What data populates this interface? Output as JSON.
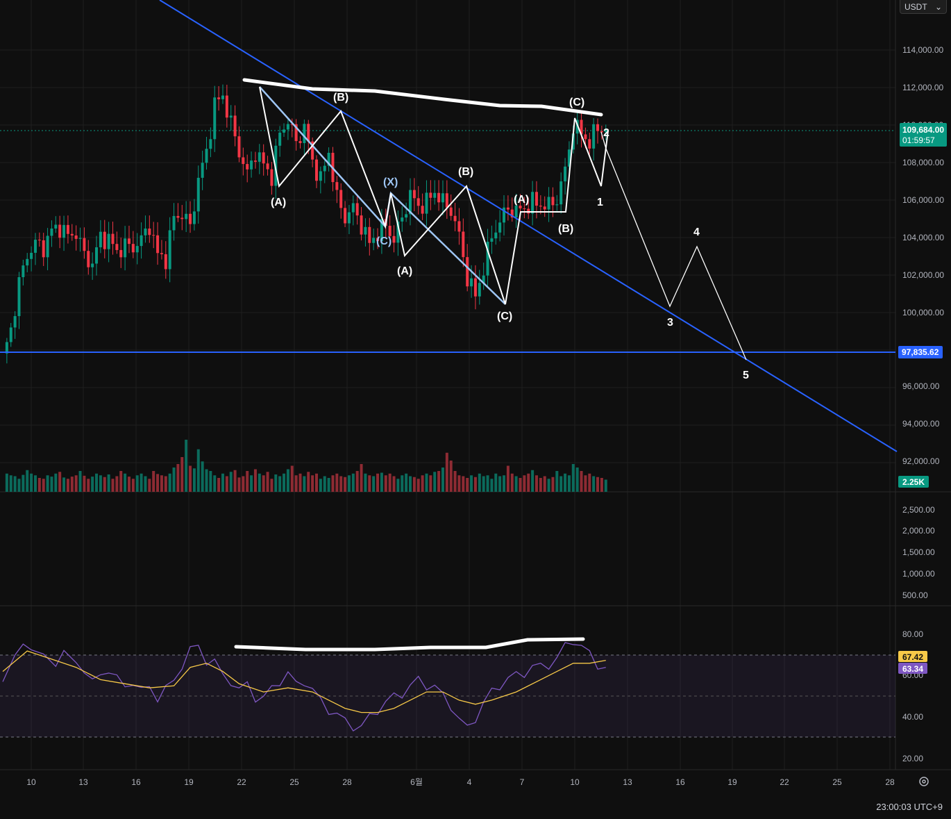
{
  "currency": {
    "label": "USDT",
    "chevron": "chevron-down-icon"
  },
  "clock": "23:00:03 UTC+9",
  "colors": {
    "background": "#0f0f0f",
    "up": "#089981",
    "down": "#f23645",
    "trendline": "#2962ff",
    "rsi": "#7e57c2",
    "rsi_ma": "#f7c948",
    "annotation": "#ffffff",
    "correction": "#9ec6f5"
  },
  "price_axis": {
    "ticks": [
      "114,000.00",
      "112,000.00",
      "110,000.00",
      "108,000.00",
      "106,000.00",
      "104,000.00",
      "102,000.00",
      "100,000.00",
      "96,000.00",
      "94,000.00",
      "92,000.00"
    ],
    "last_price": "109,684.00",
    "countdown": "01:59:57",
    "support_level": "97,835.62",
    "volume_badge": "2.25K"
  },
  "volume_axis": {
    "ticks": [
      "2,500.00",
      "2,000.00",
      "1,500.00",
      "1,000.00",
      "500.00"
    ]
  },
  "rsi_axis": {
    "ticks": [
      "80.00",
      "60.00",
      "40.00",
      "20.00"
    ],
    "ma_badge": "67.42",
    "rsi_badge": "63.34"
  },
  "time_axis": {
    "ticks": [
      "10",
      "13",
      "16",
      "19",
      "22",
      "25",
      "28",
      "6월",
      "4",
      "7",
      "10",
      "13",
      "16",
      "19",
      "22",
      "25",
      "28"
    ]
  },
  "wave_labels": {
    "a1": "(A)",
    "b1": "(B)",
    "x1": "(X)",
    "c1": "(C)",
    "a2": "(A)",
    "b2": "(B)",
    "c2": "(C)",
    "a3": "(A)",
    "b3": "(B)",
    "c3": "(C)",
    "n1": "1",
    "n2": "2",
    "n3": "3",
    "n4": "4",
    "n5": "5"
  },
  "chart_data": {
    "type": "candlestick",
    "symbol_quote": "USDT",
    "price_range": [
      91000,
      115000
    ],
    "last_price": 109684.0,
    "horizontal_support": 97835.62,
    "volume_range": [
      0,
      2700
    ],
    "last_volume": 2250,
    "rsi_range": [
      15,
      85
    ],
    "rsi_bands": [
      70,
      50,
      30
    ],
    "rsi_last": 63.34,
    "rsi_ma_last": 67.42,
    "price_path": [
      [
        0,
        97500
      ],
      [
        2,
        99000
      ],
      [
        4,
        101500
      ],
      [
        6,
        103000
      ],
      [
        8,
        103600
      ],
      [
        10,
        103400
      ],
      [
        12,
        104300
      ],
      [
        14,
        104500
      ],
      [
        16,
        104000
      ],
      [
        18,
        104200
      ],
      [
        20,
        103000
      ],
      [
        22,
        102500
      ],
      [
        24,
        104000
      ],
      [
        26,
        103800
      ],
      [
        28,
        103200
      ],
      [
        30,
        103500
      ],
      [
        32,
        103400
      ],
      [
        34,
        103800
      ],
      [
        36,
        104600
      ],
      [
        38,
        103000
      ],
      [
        40,
        102800
      ],
      [
        42,
        105000
      ],
      [
        44,
        105200
      ],
      [
        46,
        104500
      ],
      [
        48,
        107000
      ],
      [
        50,
        108500
      ],
      [
        52,
        111000
      ],
      [
        54,
        111500
      ],
      [
        56,
        110000
      ],
      [
        58,
        108500
      ],
      [
        60,
        107300
      ],
      [
        62,
        108500
      ],
      [
        64,
        107800
      ],
      [
        66,
        107200
      ],
      [
        68,
        109500
      ],
      [
        70,
        110200
      ],
      [
        72,
        109000
      ],
      [
        74,
        109800
      ],
      [
        76,
        108000
      ],
      [
        78,
        107000
      ],
      [
        80,
        108500
      ],
      [
        82,
        106000
      ],
      [
        84,
        105000
      ],
      [
        86,
        105500
      ],
      [
        88,
        104600
      ],
      [
        90,
        103600
      ],
      [
        92,
        104200
      ],
      [
        94,
        104600
      ],
      [
        96,
        103800
      ],
      [
        98,
        105000
      ],
      [
        100,
        106200
      ],
      [
        102,
        105600
      ],
      [
        104,
        105800
      ],
      [
        106,
        106400
      ],
      [
        108,
        105800
      ],
      [
        110,
        105400
      ],
      [
        112,
        104000
      ],
      [
        114,
        101800
      ],
      [
        116,
        100800
      ],
      [
        118,
        102300
      ],
      [
        120,
        104000
      ],
      [
        122,
        104800
      ],
      [
        124,
        105500
      ],
      [
        126,
        105300
      ],
      [
        128,
        105500
      ],
      [
        130,
        105800
      ],
      [
        132,
        105700
      ],
      [
        134,
        105600
      ],
      [
        136,
        106000
      ],
      [
        138,
        107500
      ],
      [
        140,
        109900
      ],
      [
        142,
        109500
      ],
      [
        144,
        109000
      ],
      [
        146,
        109800
      ],
      [
        148,
        109684
      ]
    ],
    "volume_series": [
      420,
      380,
      360,
      300,
      390,
      500,
      420,
      380,
      320,
      300,
      380,
      350,
      420,
      460,
      330,
      300,
      350,
      380,
      480,
      370,
      300,
      350,
      420,
      380,
      340,
      400,
      300,
      360,
      480,
      420,
      350,
      300,
      380,
      420,
      360,
      300,
      480,
      410,
      380,
      360,
      420,
      560,
      640,
      800,
      1200,
      600,
      540,
      980,
      700,
      520,
      480,
      380,
      320,
      420,
      360,
      460,
      500,
      330,
      360,
      480,
      380,
      520,
      420,
      380,
      460,
      300,
      400,
      360,
      420,
      520,
      600,
      380,
      420,
      360,
      460,
      380,
      420,
      300,
      360,
      320,
      380,
      420,
      360,
      340,
      380,
      420,
      480,
      640,
      420,
      380,
      360,
      420,
      440,
      380,
      420,
      360,
      300,
      380,
      420,
      360,
      340,
      300,
      380,
      420,
      380,
      460,
      480,
      560,
      900,
      720,
      480,
      380,
      360,
      320,
      380,
      340,
      420,
      360,
      380,
      300,
      420,
      360,
      380,
      600,
      420,
      360,
      320,
      380,
      420,
      500,
      380,
      320,
      360,
      300,
      340,
      480,
      360,
      420,
      380,
      640,
      560,
      480,
      380,
      420,
      360,
      340,
      320,
      280
    ],
    "rsi_series": [
      [
        0,
        57
      ],
      [
        3,
        70
      ],
      [
        5,
        78
      ],
      [
        7,
        70
      ],
      [
        10,
        68
      ],
      [
        13,
        62
      ],
      [
        15,
        72
      ],
      [
        18,
        66
      ],
      [
        20,
        64
      ],
      [
        22,
        56
      ],
      [
        24,
        60
      ],
      [
        26,
        64
      ],
      [
        28,
        58
      ],
      [
        30,
        54
      ],
      [
        32,
        58
      ],
      [
        34,
        52
      ],
      [
        36,
        54
      ],
      [
        38,
        50
      ],
      [
        40,
        53
      ],
      [
        42,
        57
      ],
      [
        44,
        66
      ],
      [
        46,
        72
      ],
      [
        48,
        74
      ],
      [
        50,
        68
      ],
      [
        52,
        66
      ],
      [
        54,
        60
      ],
      [
        56,
        58
      ],
      [
        58,
        52
      ],
      [
        60,
        56
      ],
      [
        62,
        50
      ],
      [
        64,
        48
      ],
      [
        66,
        54
      ],
      [
        68,
        58
      ],
      [
        70,
        60
      ],
      [
        72,
        56
      ],
      [
        74,
        58
      ],
      [
        76,
        52
      ],
      [
        78,
        48
      ],
      [
        80,
        44
      ],
      [
        82,
        40
      ],
      [
        84,
        38
      ],
      [
        86,
        36
      ],
      [
        88,
        34
      ],
      [
        90,
        40
      ],
      [
        92,
        44
      ],
      [
        94,
        46
      ],
      [
        96,
        50
      ],
      [
        98,
        52
      ],
      [
        100,
        54
      ],
      [
        102,
        58
      ],
      [
        104,
        56
      ],
      [
        106,
        54
      ],
      [
        108,
        50
      ],
      [
        110,
        46
      ],
      [
        112,
        38
      ],
      [
        114,
        34
      ],
      [
        116,
        40
      ],
      [
        118,
        46
      ],
      [
        120,
        52
      ],
      [
        122,
        56
      ],
      [
        124,
        58
      ],
      [
        126,
        60
      ],
      [
        128,
        62
      ],
      [
        130,
        64
      ],
      [
        132,
        64
      ],
      [
        134,
        66
      ],
      [
        136,
        68
      ],
      [
        138,
        74
      ],
      [
        140,
        78
      ],
      [
        142,
        74
      ],
      [
        144,
        70
      ],
      [
        146,
        66
      ],
      [
        148,
        63.34
      ]
    ],
    "rsi_ma_series": [
      [
        0,
        62
      ],
      [
        6,
        72
      ],
      [
        12,
        68
      ],
      [
        18,
        64
      ],
      [
        24,
        58
      ],
      [
        30,
        56
      ],
      [
        36,
        54
      ],
      [
        42,
        55
      ],
      [
        46,
        64
      ],
      [
        50,
        66
      ],
      [
        54,
        62
      ],
      [
        58,
        56
      ],
      [
        64,
        52
      ],
      [
        70,
        54
      ],
      [
        76,
        52
      ],
      [
        80,
        48
      ],
      [
        84,
        44
      ],
      [
        88,
        42
      ],
      [
        92,
        42
      ],
      [
        96,
        44
      ],
      [
        100,
        48
      ],
      [
        104,
        52
      ],
      [
        108,
        52
      ],
      [
        112,
        48
      ],
      [
        116,
        46
      ],
      [
        120,
        48
      ],
      [
        126,
        52
      ],
      [
        132,
        58
      ],
      [
        136,
        62
      ],
      [
        140,
        66
      ],
      [
        144,
        66
      ],
      [
        148,
        67.42
      ]
    ],
    "trendline_points": [
      [
        230,
        0
      ],
      [
        1292,
        650
      ]
    ],
    "resistance_curve": [
      [
        352,
        115
      ],
      [
        450,
        128
      ],
      [
        540,
        131
      ],
      [
        640,
        143
      ],
      [
        720,
        152
      ],
      [
        780,
        153
      ],
      [
        866,
        165
      ]
    ],
    "rsi_resistance_curve": [
      [
        340,
        931
      ],
      [
        440,
        935
      ],
      [
        540,
        935
      ],
      [
        620,
        932
      ],
      [
        700,
        932
      ],
      [
        760,
        921
      ],
      [
        840,
        920
      ]
    ],
    "projection_path": [
      [
        866,
        190
      ],
      [
        873,
        214
      ],
      [
        965,
        441
      ],
      [
        1004,
        355
      ],
      [
        1075,
        518
      ]
    ],
    "wave_path_correction": [
      [
        374,
        125
      ],
      [
        555,
        326
      ],
      [
        563,
        278
      ],
      [
        728,
        438
      ]
    ],
    "wave_path_main": [
      [
        374,
        125
      ],
      [
        402,
        268
      ],
      [
        491,
        160
      ],
      [
        555,
        326
      ],
      [
        563,
        278
      ],
      [
        583,
        368
      ],
      [
        672,
        268
      ],
      [
        728,
        438
      ],
      [
        750,
        305
      ],
      [
        815,
        305
      ],
      [
        828,
        170
      ],
      [
        866,
        268
      ],
      [
        876,
        188
      ]
    ]
  }
}
